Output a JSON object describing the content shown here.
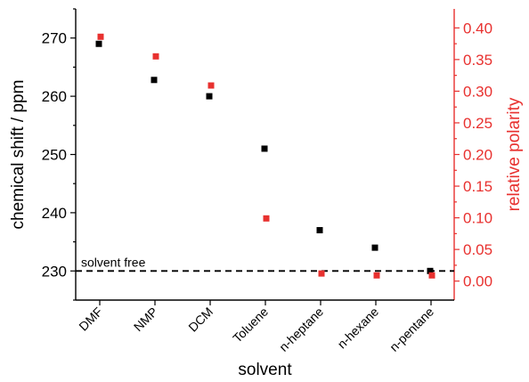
{
  "chart_data": {
    "type": "scatter",
    "categories": [
      "DMF",
      "NMP",
      "DCM",
      "Toluene",
      "n-heptane",
      "n-hexane",
      "n-pentane"
    ],
    "xlabel": "solvent",
    "ylabel": "chemical shift / ppm",
    "y2label": "relative polarity",
    "ylim": [
      225,
      275
    ],
    "y2lim": [
      -0.03,
      0.43
    ],
    "yticks": [
      230,
      240,
      250,
      260,
      270
    ],
    "y2ticks": [
      "0.00",
      "0.05",
      "0.10",
      "0.15",
      "0.20",
      "0.25",
      "0.30",
      "0.35",
      "0.40"
    ],
    "series": [
      {
        "axis": "left",
        "color": "#000000",
        "values": [
          269.0,
          262.8,
          260.0,
          251.0,
          237.0,
          234.0,
          230.0
        ]
      },
      {
        "axis": "right",
        "color": "#e8312f",
        "values": [
          0.386,
          0.355,
          0.309,
          0.099,
          0.012,
          0.009,
          0.009
        ]
      }
    ],
    "reference_line": {
      "y": 230,
      "style": "dashed",
      "label": "solvent free"
    },
    "grid": false,
    "legend": "none"
  }
}
